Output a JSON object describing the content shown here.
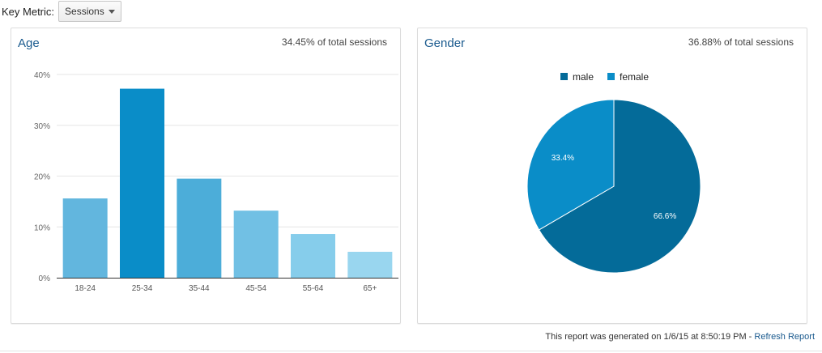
{
  "key_metric": {
    "label": "Key Metric:",
    "selected": "Sessions"
  },
  "age": {
    "title": "Age",
    "subtitle": "34.45% of total sessions"
  },
  "gender": {
    "title": "Gender",
    "subtitle": "36.88% of total sessions"
  },
  "footer": {
    "text": "This report was generated on 1/6/15 at 8:50:19 PM - ",
    "link": "Refresh Report"
  },
  "colors": {
    "male": "#046b99",
    "female": "#0a8dc8",
    "accent": "#1a5a8e"
  },
  "chart_data": [
    {
      "type": "bar",
      "title": "Age",
      "categories": [
        "18-24",
        "25-34",
        "35-44",
        "45-54",
        "55-64",
        "65+"
      ],
      "values": [
        15.6,
        37.2,
        19.5,
        13.2,
        8.6,
        5.1
      ],
      "colors": [
        "#62b6de",
        "#0a8dc8",
        "#4cadd9",
        "#71c0e4",
        "#86cdeb",
        "#99d6ef"
      ],
      "ylim": [
        0,
        40
      ],
      "yticks": [
        "0%",
        "10%",
        "20%",
        "30%",
        "40%"
      ],
      "grid": true
    },
    {
      "type": "pie",
      "title": "Gender",
      "labels": [
        "male",
        "female"
      ],
      "values": [
        66.6,
        33.4
      ],
      "value_labels": [
        "66.6%",
        "33.4%"
      ],
      "colors": [
        "#046b99",
        "#0a8dc8"
      ],
      "legend": "top"
    }
  ]
}
